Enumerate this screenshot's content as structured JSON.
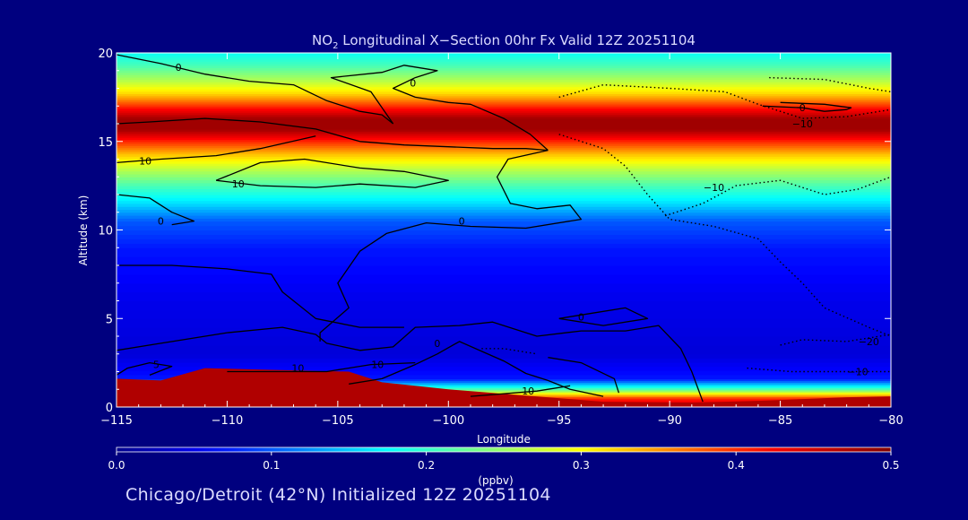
{
  "title": {
    "prefix": "NO",
    "subscript": "2",
    "rest": " Longitudinal X−Section 00hr  Fx Valid 12Z 20251104"
  },
  "footer": "Chicago/Detroit (42°N) Initialized 12Z 20251104",
  "chart_data": {
    "type": "heatmap",
    "xlabel": "Longitude",
    "ylabel": "Altitude (km)",
    "xlim": [
      -115,
      -80
    ],
    "ylim": [
      0,
      20
    ],
    "x_ticks": [
      -115,
      -110,
      -105,
      -100,
      -95,
      -90,
      -85,
      -80
    ],
    "x_tick_labels": [
      "−115",
      "−110",
      "−105",
      "−100",
      "−95",
      "−90",
      "−85",
      "−80"
    ],
    "y_ticks": [
      0,
      5,
      10,
      15,
      20
    ],
    "y_tick_labels": [
      "0",
      "5",
      "10",
      "15",
      "20"
    ],
    "colorbar": {
      "label": "(ppbv)",
      "min": 0.0,
      "max": 0.5,
      "ticks": [
        0.0,
        0.1,
        0.2,
        0.3,
        0.4,
        0.5
      ],
      "tick_labels": [
        "0.0",
        "0.1",
        "0.2",
        "0.3",
        "0.4",
        "0.5"
      ]
    },
    "field": {
      "variable": "NO2 mixing ratio (ppbv)",
      "profile": [
        {
          "alt": 0.0,
          "value": 0.47
        },
        {
          "alt": 0.5,
          "value": 0.4
        },
        {
          "alt": 1.0,
          "value": 0.22
        },
        {
          "alt": 1.6,
          "value": 0.07
        },
        {
          "alt": 3.0,
          "value": 0.04
        },
        {
          "alt": 6.0,
          "value": 0.05
        },
        {
          "alt": 9.0,
          "value": 0.07
        },
        {
          "alt": 10.5,
          "value": 0.1
        },
        {
          "alt": 11.5,
          "value": 0.16
        },
        {
          "alt": 12.5,
          "value": 0.21
        },
        {
          "alt": 13.5,
          "value": 0.27
        },
        {
          "alt": 14.3,
          "value": 0.33
        },
        {
          "alt": 15.0,
          "value": 0.4
        },
        {
          "alt": 15.7,
          "value": 0.48
        },
        {
          "alt": 16.3,
          "value": 0.48
        },
        {
          "alt": 17.0,
          "value": 0.4
        },
        {
          "alt": 17.7,
          "value": 0.32
        },
        {
          "alt": 18.5,
          "value": 0.26
        },
        {
          "alt": 19.3,
          "value": 0.21
        },
        {
          "alt": 20.0,
          "value": 0.18
        }
      ],
      "surface_layer": {
        "value": 0.47,
        "top": [
          {
            "lon": -115,
            "alt": 1.6
          },
          {
            "lon": -113,
            "alt": 1.5
          },
          {
            "lon": -111,
            "alt": 2.2
          },
          {
            "lon": -108,
            "alt": 2.1
          },
          {
            "lon": -104.5,
            "alt": 2.0
          },
          {
            "lon": -103,
            "alt": 1.4
          },
          {
            "lon": -100,
            "alt": 1.0
          },
          {
            "lon": -97,
            "alt": 0.7
          },
          {
            "lon": -93,
            "alt": 0.3
          },
          {
            "lon": -89,
            "alt": 0.25
          },
          {
            "lon": -86,
            "alt": 0.35
          },
          {
            "lon": -82,
            "alt": 0.55
          },
          {
            "lon": -80,
            "alt": 0.6
          }
        ]
      }
    },
    "contours": [
      {
        "level": 0,
        "style": "solid",
        "points": [
          [
            -115,
            19.9
          ],
          [
            -113,
            19.4
          ],
          [
            -111,
            18.8
          ],
          [
            -109,
            18.4
          ],
          [
            -107,
            18.2
          ],
          [
            -105.5,
            17.3
          ],
          [
            -104,
            16.7
          ],
          [
            -103,
            16.5
          ],
          [
            -102.5,
            16.0
          ]
        ]
      },
      {
        "level": 0,
        "style": "solid",
        "points": [
          [
            -115,
            16.0
          ],
          [
            -113.5,
            16.1
          ],
          [
            -111,
            16.3
          ],
          [
            -108.5,
            16.1
          ],
          [
            -106,
            15.7
          ],
          [
            -104,
            15.0
          ],
          [
            -102,
            14.8
          ],
          [
            -100,
            14.7
          ],
          [
            -98,
            14.6
          ],
          [
            -96.5,
            14.6
          ],
          [
            -95.5,
            14.5
          ]
        ]
      },
      {
        "level": 0,
        "style": "solid",
        "points": [
          [
            -95.5,
            14.5
          ],
          [
            -96.3,
            15.4
          ],
          [
            -97.5,
            16.3
          ],
          [
            -99,
            17.1
          ],
          [
            -100,
            17.2
          ],
          [
            -101.5,
            17.5
          ],
          [
            -102.5,
            18.0
          ],
          [
            -101.5,
            18.6
          ],
          [
            -100.5,
            19.0
          ],
          [
            -102,
            19.3
          ],
          [
            -103,
            18.9
          ],
          [
            -105.3,
            18.6
          ],
          [
            -103.5,
            17.8
          ],
          [
            -102.5,
            16.0
          ]
        ]
      },
      {
        "level": 0,
        "style": "solid",
        "points": [
          [
            -95.5,
            14.5
          ],
          [
            -97.3,
            14.0
          ],
          [
            -97.8,
            13.0
          ],
          [
            -97.2,
            11.5
          ],
          [
            -96.0,
            11.2
          ],
          [
            -94.5,
            11.4
          ],
          [
            -94.0,
            10.6
          ],
          [
            -96.5,
            10.1
          ],
          [
            -99.0,
            10.2
          ],
          [
            -101.0,
            10.4
          ],
          [
            -102.8,
            9.8
          ],
          [
            -104.0,
            8.8
          ],
          [
            -105.0,
            7.0
          ],
          [
            -104.5,
            5.6
          ],
          [
            -105.8,
            4.2
          ],
          [
            -105.8,
            3.7
          ]
        ]
      },
      {
        "level": 0,
        "style": "solid",
        "points": [
          [
            -115,
            12.0
          ],
          [
            -113.5,
            11.8
          ],
          [
            -112.5,
            11.0
          ],
          [
            -111.5,
            10.5
          ],
          [
            -112.5,
            10.3
          ]
        ]
      },
      {
        "level": 10,
        "style": "solid",
        "points": [
          [
            -115,
            13.8
          ],
          [
            -113,
            14.0
          ],
          [
            -110.5,
            14.2
          ],
          [
            -108.5,
            14.6
          ],
          [
            -106,
            15.3
          ]
        ]
      },
      {
        "level": 10,
        "style": "solid",
        "points": [
          [
            -110.5,
            12.8
          ],
          [
            -108.5,
            13.8
          ],
          [
            -106.5,
            14.0
          ],
          [
            -104,
            13.5
          ],
          [
            -102,
            13.3
          ],
          [
            -100,
            12.8
          ],
          [
            -101.5,
            12.4
          ],
          [
            -104,
            12.6
          ],
          [
            -106,
            12.4
          ],
          [
            -108.5,
            12.5
          ],
          [
            -110.5,
            12.8
          ]
        ]
      },
      {
        "level": 0,
        "style": "solid",
        "points": [
          [
            -115,
            8.0
          ],
          [
            -112.5,
            8.0
          ],
          [
            -110,
            7.8
          ],
          [
            -108,
            7.5
          ],
          [
            -107.5,
            6.5
          ],
          [
            -106,
            5.0
          ],
          [
            -104,
            4.5
          ],
          [
            -102,
            4.5
          ]
        ]
      },
      {
        "level": 0,
        "style": "solid",
        "points": [
          [
            -115,
            3.2
          ],
          [
            -113,
            3.6
          ],
          [
            -110,
            4.2
          ],
          [
            -107.5,
            4.5
          ],
          [
            -106,
            4.1
          ],
          [
            -105.5,
            3.6
          ],
          [
            -104,
            3.2
          ],
          [
            -102.5,
            3.4
          ],
          [
            -101.5,
            4.5
          ],
          [
            -99.5,
            4.6
          ],
          [
            -98,
            4.8
          ],
          [
            -96,
            4.0
          ],
          [
            -94,
            4.3
          ],
          [
            -92,
            4.3
          ],
          [
            -90.5,
            4.6
          ],
          [
            -89.5,
            3.3
          ],
          [
            -89,
            2.0
          ],
          [
            -88.5,
            0.3
          ]
        ]
      },
      {
        "level": 0,
        "style": "solid",
        "points": [
          [
            -104.5,
            1.3
          ],
          [
            -103,
            1.6
          ],
          [
            -101.5,
            2.4
          ],
          [
            -100.5,
            3.0
          ],
          [
            -99.5,
            3.7
          ],
          [
            -97.5,
            2.6
          ],
          [
            -96.5,
            1.9
          ],
          [
            -95.5,
            1.5
          ],
          [
            -94.5,
            1.0
          ],
          [
            -93,
            0.6
          ]
        ]
      },
      {
        "level": 10,
        "style": "solid",
        "points": [
          [
            -110,
            2.0
          ],
          [
            -107.5,
            2.0
          ],
          [
            -105.5,
            2.0
          ],
          [
            -103.5,
            2.4
          ],
          [
            -101.5,
            2.5
          ]
        ]
      },
      {
        "level": 0,
        "style": "solid",
        "points": [
          [
            -95.5,
            2.8
          ],
          [
            -94,
            2.5
          ],
          [
            -92.5,
            1.6
          ],
          [
            -92.3,
            0.8
          ]
        ]
      },
      {
        "level": 5,
        "style": "solid",
        "points": [
          [
            -115,
            1.8
          ],
          [
            -114.5,
            2.2
          ],
          [
            -113.5,
            2.5
          ],
          [
            -112.5,
            2.3
          ],
          [
            -113.5,
            1.8
          ]
        ]
      },
      {
        "level": 0,
        "style": "solid",
        "points": [
          [
            -95,
            5.0
          ],
          [
            -93.5,
            5.3
          ],
          [
            -92,
            5.6
          ],
          [
            -91,
            5.0
          ],
          [
            -93,
            4.6
          ],
          [
            -95,
            5.0
          ]
        ]
      },
      {
        "level": 10,
        "style": "solid",
        "points": [
          [
            -99,
            0.6
          ],
          [
            -97,
            0.8
          ],
          [
            -96,
            0.9
          ],
          [
            -94.5,
            1.2
          ]
        ]
      },
      {
        "level": 0,
        "style": "solid",
        "points": [
          [
            -85.8,
            17.0
          ],
          [
            -84,
            16.9
          ],
          [
            -83,
            16.7
          ],
          [
            -82,
            16.8
          ],
          [
            -81.8,
            16.9
          ],
          [
            -83,
            17.1
          ],
          [
            -85,
            17.2
          ]
        ]
      },
      {
        "level": -10,
        "style": "dotted",
        "points": [
          [
            -95,
            17.5
          ],
          [
            -93,
            18.2
          ],
          [
            -90,
            18.0
          ],
          [
            -87.5,
            17.8
          ],
          [
            -86,
            17.1
          ],
          [
            -84,
            16.3
          ],
          [
            -82,
            16.4
          ],
          [
            -80,
            16.8
          ]
        ]
      },
      {
        "level": -10,
        "style": "dotted",
        "points": [
          [
            -85.5,
            18.6
          ],
          [
            -83,
            18.5
          ],
          [
            -81,
            18.0
          ],
          [
            -80,
            17.8
          ]
        ]
      },
      {
        "level": -10,
        "style": "dotted",
        "points": [
          [
            -95,
            15.4
          ],
          [
            -93,
            14.6
          ],
          [
            -92,
            13.6
          ],
          [
            -91,
            12.0
          ],
          [
            -90,
            10.6
          ],
          [
            -88,
            10.2
          ],
          [
            -86,
            9.5
          ],
          [
            -85,
            8.2
          ],
          [
            -84,
            7.0
          ],
          [
            -83,
            5.6
          ],
          [
            -81,
            4.5
          ],
          [
            -80,
            4.0
          ]
        ]
      },
      {
        "level": -10,
        "style": "dotted",
        "points": [
          [
            -90.2,
            10.8
          ],
          [
            -88.5,
            11.5
          ],
          [
            -87,
            12.5
          ],
          [
            -85,
            12.8
          ],
          [
            -83,
            12.0
          ],
          [
            -81.5,
            12.3
          ],
          [
            -80,
            13.0
          ]
        ]
      },
      {
        "level": -20,
        "style": "dotted",
        "points": [
          [
            -85,
            3.5
          ],
          [
            -84,
            3.8
          ],
          [
            -82,
            3.7
          ],
          [
            -81,
            3.9
          ],
          [
            -80,
            4.1
          ]
        ]
      },
      {
        "level": -10,
        "style": "dotted",
        "points": [
          [
            -86.5,
            2.2
          ],
          [
            -84.5,
            2.0
          ],
          [
            -82,
            2.0
          ],
          [
            -80,
            2.0
          ]
        ]
      },
      {
        "level": 0,
        "style": "dotted",
        "points": [
          [
            -98.5,
            3.3
          ],
          [
            -97.5,
            3.3
          ],
          [
            -96,
            3.0
          ]
        ]
      }
    ],
    "contour_labels": [
      {
        "text": "0",
        "lon": -112.2,
        "alt": 19.2
      },
      {
        "text": "0",
        "lon": -101.6,
        "alt": 18.3
      },
      {
        "text": "10",
        "lon": -113.7,
        "alt": 13.9
      },
      {
        "text": "10",
        "lon": -109.5,
        "alt": 12.6
      },
      {
        "text": "0",
        "lon": -113.0,
        "alt": 10.5
      },
      {
        "text": "0",
        "lon": -99.4,
        "alt": 10.5
      },
      {
        "text": "0",
        "lon": -94.0,
        "alt": 5.1
      },
      {
        "text": "0",
        "lon": -100.5,
        "alt": 3.6
      },
      {
        "text": "5",
        "lon": -113.2,
        "alt": 2.4
      },
      {
        "text": "10",
        "lon": -106.8,
        "alt": 2.2
      },
      {
        "text": "10",
        "lon": -103.2,
        "alt": 2.4
      },
      {
        "text": "10",
        "lon": -96.4,
        "alt": 0.9
      },
      {
        "text": "0",
        "lon": -84.0,
        "alt": 16.9
      },
      {
        "text": "−10",
        "lon": -84.0,
        "alt": 16.0
      },
      {
        "text": "−10",
        "lon": -88.0,
        "alt": 12.4
      },
      {
        "text": "−20",
        "lon": -81.0,
        "alt": 3.7
      },
      {
        "text": "−10",
        "lon": -81.5,
        "alt": 2.0
      }
    ]
  }
}
